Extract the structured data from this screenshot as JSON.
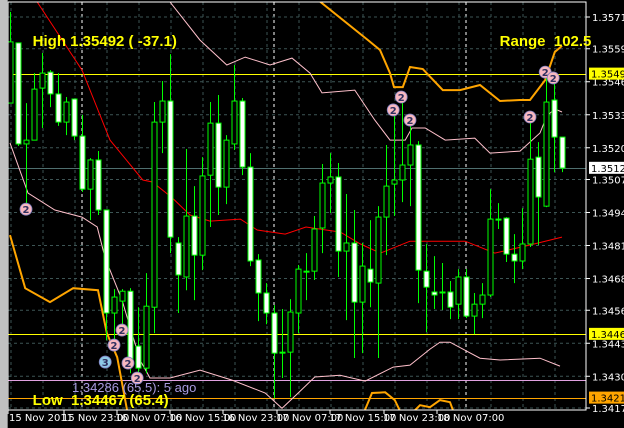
{
  "header": {
    "high_label": "High",
    "high_value": "1.35492 ( -37.1)",
    "range_label": "Range",
    "range_value": "102.5",
    "low_label": "Low",
    "low_value": "1.34467 (65.4)",
    "ago_text": "1.34286 (65.5): 5 ago"
  },
  "colors": {
    "background": "#000000",
    "bull_outline": "#00ff00",
    "bear_body": "#ffffff",
    "ma": "#ff0000",
    "envelope": "#ffc0cb",
    "band": "#ffa500",
    "high_low_line": "#ffff00",
    "ago_line": "#e0a0e0",
    "bid_line": "#4f6f6f",
    "marker_2": "#f8b8c0",
    "marker_3": "#8ecae6"
  },
  "chart_data": {
    "type": "candlestick",
    "title": "",
    "price_axis": {
      "range": [
        1.34145,
        1.35782
      ],
      "tick_labels": [
        "1.35715",
        "1.35590",
        "1.35460",
        "1.35330",
        "1.35200",
        "1.35075",
        "1.34945",
        "1.34815",
        "1.34685",
        "1.34560",
        "1.34430",
        "1.34300",
        "1.34175"
      ],
      "highlighted": [
        {
          "value": "1.35492",
          "price": 1.35492,
          "bg": "#ffff00",
          "fg": "#000000"
        },
        {
          "value": "1.35121",
          "price": 1.35121,
          "bg": "#ffffff",
          "fg": "#000000"
        },
        {
          "value": "1.34467",
          "price": 1.34467,
          "bg": "#ffff00",
          "fg": "#000000"
        },
        {
          "value": "1.34216",
          "price": 1.34216,
          "bg": "#ffa500",
          "fg": "#000000"
        }
      ]
    },
    "time_axis": {
      "tick_labels": [
        "15 Nov 2011",
        "15 Nov 23:00",
        "16 Nov 07:00",
        "16 Nov 15:00",
        "16 Nov 23:00",
        "17 Nov 07:00",
        "17 Nov 15:00",
        "17 Nov 23:00",
        "18 Nov 07:00"
      ]
    },
    "grid": true,
    "candles_ohlc": [
      [
        1.35376,
        1.35735,
        1.35376,
        1.35617
      ],
      [
        1.35613,
        1.35613,
        1.35207,
        1.35215
      ],
      [
        1.35215,
        1.35376,
        1.34955,
        1.3523
      ],
      [
        1.3523,
        1.35494,
        1.3523,
        1.35431
      ],
      [
        1.35435,
        1.35573,
        1.35278,
        1.35494
      ],
      [
        1.35498,
        1.35506,
        1.3536,
        1.35412
      ],
      [
        1.35412,
        1.35494,
        1.35286,
        1.35301
      ],
      [
        1.35301,
        1.354,
        1.3525,
        1.3538
      ],
      [
        1.35392,
        1.35392,
        1.3523,
        1.35246
      ],
      [
        1.35246,
        1.35329,
        1.35026,
        1.35037
      ],
      [
        1.35037,
        1.35159,
        1.34915,
        1.35152
      ],
      [
        1.35152,
        1.35187,
        1.34935,
        1.34955
      ],
      [
        1.34955,
        1.34955,
        1.34442,
        1.34549
      ],
      [
        1.34549,
        1.34643,
        1.34431,
        1.34612
      ],
      [
        1.34596,
        1.34643,
        1.34482,
        1.34635
      ],
      [
        1.34635,
        1.34647,
        1.34312,
        1.34364
      ],
      [
        1.34419,
        1.34572,
        1.34312,
        1.34332
      ],
      [
        1.34332,
        1.34706,
        1.34312,
        1.34576
      ],
      [
        1.34572,
        1.3538,
        1.3447,
        1.35301
      ],
      [
        1.35301,
        1.35463,
        1.35179,
        1.35384
      ],
      [
        1.35384,
        1.35569,
        1.34785,
        1.34848
      ],
      [
        1.34825,
        1.34848,
        1.34549,
        1.34699
      ],
      [
        1.34691,
        1.35195,
        1.34639,
        1.34931
      ],
      [
        1.34931,
        1.35049,
        1.346,
        1.34777
      ],
      [
        1.34777,
        1.35163,
        1.34718,
        1.35089
      ],
      [
        1.35092,
        1.3538,
        1.34888,
        1.35297
      ],
      [
        1.35297,
        1.35408,
        1.34935,
        1.35045
      ],
      [
        1.35045,
        1.3525,
        1.34978,
        1.3523
      ],
      [
        1.35215,
        1.35526,
        1.35191,
        1.35384
      ],
      [
        1.35384,
        1.35396,
        1.35092,
        1.35124
      ],
      [
        1.35124,
        1.35179,
        1.34734,
        1.34754
      ],
      [
        1.34758,
        1.34781,
        1.34517,
        1.34628
      ],
      [
        1.34628,
        1.34667,
        1.34505,
        1.34549
      ],
      [
        1.34549,
        1.3458,
        1.34214,
        1.34391
      ],
      [
        1.34395,
        1.34565,
        1.34293,
        1.34395
      ],
      [
        1.34395,
        1.34604,
        1.34218,
        1.34553
      ],
      [
        1.34549,
        1.34738,
        1.3447,
        1.34722
      ],
      [
        1.34714,
        1.34785,
        1.346,
        1.34714
      ],
      [
        1.34714,
        1.34931,
        1.34679,
        1.3488
      ],
      [
        1.34884,
        1.35136,
        1.34785,
        1.35061
      ],
      [
        1.35061,
        1.35179,
        1.34943,
        1.35085
      ],
      [
        1.35085,
        1.3514,
        1.34691,
        1.34793
      ],
      [
        1.34793,
        1.35018,
        1.34521,
        1.34825
      ],
      [
        1.34825,
        1.34955,
        1.34372,
        1.34592
      ],
      [
        1.34592,
        1.34825,
        1.34391,
        1.34734
      ],
      [
        1.34722,
        1.34915,
        1.34572,
        1.34671
      ],
      [
        1.34667,
        1.3497,
        1.34372,
        1.34927
      ],
      [
        1.34927,
        1.35211,
        1.34777,
        1.35049
      ],
      [
        1.35057,
        1.35364,
        1.34931,
        1.35073
      ],
      [
        1.35073,
        1.354,
        1.34986,
        1.35132
      ],
      [
        1.35132,
        1.35309,
        1.3497,
        1.35211
      ],
      [
        1.35211,
        1.35226,
        1.34588,
        1.34718
      ],
      [
        1.34714,
        1.34821,
        1.34474,
        1.34651
      ],
      [
        1.34632,
        1.34773,
        1.34565,
        1.3462
      ],
      [
        1.34632,
        1.34746,
        1.34561,
        1.34632
      ],
      [
        1.34632,
        1.34675,
        1.34525,
        1.34572
      ],
      [
        1.34584,
        1.34722,
        1.34525,
        1.34691
      ],
      [
        1.34691,
        1.34722,
        1.34529,
        1.34537
      ],
      [
        1.34537,
        1.34628,
        1.34466,
        1.34584
      ],
      [
        1.34584,
        1.34667,
        1.34529,
        1.3462
      ],
      [
        1.3462,
        1.35037,
        1.34612,
        1.34919
      ],
      [
        1.34919,
        1.34982,
        1.3488,
        1.34919
      ],
      [
        1.34923,
        1.34927,
        1.3475,
        1.34781
      ],
      [
        1.34781,
        1.3486,
        1.34667,
        1.34754
      ],
      [
        1.34754,
        1.34962,
        1.34722,
        1.34821
      ],
      [
        1.34821,
        1.35309,
        1.34809,
        1.35155
      ],
      [
        1.35163,
        1.35222,
        1.34817,
        1.35006
      ],
      [
        1.3497,
        1.35502,
        1.34966,
        1.3538
      ],
      [
        1.35388,
        1.35475,
        1.35104,
        1.35242
      ],
      [
        1.35242,
        1.35242,
        1.35104,
        1.3512
      ]
    ],
    "horizontal_lines": [
      {
        "price": 1.35492,
        "color": "#ffff00"
      },
      {
        "price": 1.35121,
        "color": "#4f6f6f"
      },
      {
        "price": 1.34467,
        "color": "#ffff00"
      },
      {
        "price": 1.34286,
        "color": "#e0a0e0"
      },
      {
        "price": 1.34216,
        "color": "#ffa500"
      }
    ],
    "day_separators_bar": [
      9,
      33,
      57
    ],
    "indicators": [
      {
        "id": "ma",
        "color": "#ff0000",
        "width": 1,
        "points": [
          [
            3.4,
            1.35774
          ],
          [
            9,
            1.35506
          ],
          [
            12.5,
            1.3523
          ],
          [
            16.6,
            1.35073
          ],
          [
            17.8,
            1.35065
          ],
          [
            20.3,
            1.35002
          ],
          [
            22.5,
            1.34935
          ],
          [
            25,
            1.34911
          ],
          [
            28.8,
            1.34919
          ],
          [
            30.9,
            1.34876
          ],
          [
            34.4,
            1.3486
          ],
          [
            37,
            1.34888
          ],
          [
            41.3,
            1.34868
          ],
          [
            43.8,
            1.34821
          ],
          [
            46.3,
            1.34785
          ],
          [
            50,
            1.34832
          ],
          [
            56.9,
            1.34832
          ],
          [
            60.6,
            1.34785
          ],
          [
            65,
            1.34817
          ],
          [
            69,
            1.34848
          ]
        ]
      },
      {
        "id": "envelope-upper",
        "color": "#ffc0cb",
        "width": 1,
        "points": [
          [
            20,
            1.35774
          ],
          [
            23.75,
            1.35624
          ],
          [
            27.1,
            1.35526
          ],
          [
            29.4,
            1.35557
          ],
          [
            32.5,
            1.35526
          ],
          [
            35.25,
            1.35553
          ],
          [
            37.5,
            1.35494
          ],
          [
            39,
            1.35416
          ],
          [
            43.1,
            1.35427
          ],
          [
            45.6,
            1.35309
          ],
          [
            47.5,
            1.3523
          ],
          [
            49.4,
            1.3523
          ],
          [
            50.25,
            1.35278
          ],
          [
            51.9,
            1.35278
          ],
          [
            54.4,
            1.3523
          ],
          [
            58.1,
            1.35238
          ],
          [
            60,
            1.35179
          ],
          [
            63.75,
            1.35187
          ],
          [
            66.25,
            1.35258
          ],
          [
            67.1,
            1.35325
          ],
          [
            68.1,
            1.35353
          ],
          [
            69,
            1.35341
          ]
        ]
      },
      {
        "id": "envelope-lower",
        "color": "#ffc0cb",
        "width": 1,
        "points": [
          [
            0,
            1.35219
          ],
          [
            2.25,
            1.35022
          ],
          [
            5.6,
            1.34955
          ],
          [
            9,
            1.34927
          ],
          [
            10.9,
            1.34888
          ],
          [
            11.9,
            1.34765
          ],
          [
            14,
            1.346
          ],
          [
            16.25,
            1.34364
          ],
          [
            17.5,
            1.34293
          ],
          [
            20,
            1.34293
          ],
          [
            23.75,
            1.34324
          ],
          [
            27.75,
            1.34285
          ],
          [
            31.9,
            1.34234
          ],
          [
            34,
            1.34174
          ],
          [
            35.75,
            1.34226
          ],
          [
            38.1,
            1.34297
          ],
          [
            41.25,
            1.34304
          ],
          [
            44.4,
            1.34281
          ],
          [
            47.9,
            1.34336
          ],
          [
            50,
            1.34344
          ],
          [
            52.5,
            1.34407
          ],
          [
            53.75,
            1.34434
          ],
          [
            55,
            1.34434
          ],
          [
            58.75,
            1.34371
          ],
          [
            61.25,
            1.34364
          ],
          [
            66.25,
            1.34371
          ],
          [
            68.75,
            1.3434
          ]
        ]
      },
      {
        "id": "band-upper",
        "color": "#ffa500",
        "width": 2,
        "points": [
          [
            38.5,
            1.35782
          ],
          [
            44.75,
            1.35624
          ],
          [
            46.25,
            1.35585
          ],
          [
            47.5,
            1.35494
          ],
          [
            48,
            1.35439
          ],
          [
            49.1,
            1.35439
          ],
          [
            50,
            1.35518
          ],
          [
            51.6,
            1.3551
          ],
          [
            54.1,
            1.35427
          ],
          [
            56.25,
            1.35427
          ],
          [
            58.75,
            1.35447
          ],
          [
            61.25,
            1.35384
          ],
          [
            63.75,
            1.35388
          ],
          [
            65,
            1.35388
          ],
          [
            66.9,
            1.35467
          ],
          [
            68.1,
            1.35577
          ],
          [
            69,
            1.35601
          ]
        ]
      },
      {
        "id": "band-lower-left",
        "color": "#ffa500",
        "width": 2,
        "points": [
          [
            0,
            1.34856
          ],
          [
            1.9,
            1.34647
          ],
          [
            5,
            1.34592
          ],
          [
            7.9,
            1.34647
          ],
          [
            11,
            1.34639
          ],
          [
            12.1,
            1.3447
          ],
          [
            13.4,
            1.34375
          ],
          [
            14.4,
            1.34206
          ],
          [
            14.75,
            1.34147
          ]
        ]
      },
      {
        "id": "band-lower-right",
        "color": "#ffa500",
        "width": 2,
        "points": [
          [
            44.1,
            1.34147
          ],
          [
            45.25,
            1.34234
          ],
          [
            46.9,
            1.34237
          ],
          [
            48.1,
            1.34206
          ],
          [
            49,
            1.34147
          ],
          [
            50,
            1.34147
          ],
          [
            51.25,
            1.34186
          ],
          [
            52.5,
            1.34178
          ],
          [
            53.75,
            1.34206
          ],
          [
            55,
            1.34198
          ],
          [
            55.6,
            1.34147
          ]
        ]
      }
    ],
    "markers": [
      {
        "bar": 2,
        "price": 1.34958,
        "label": "2"
      },
      {
        "bar": 14,
        "price": 1.34482,
        "label": "2"
      },
      {
        "bar": 13,
        "price": 1.34423,
        "label": "2"
      },
      {
        "bar": 11.9,
        "price": 1.34356,
        "label": "3"
      },
      {
        "bar": 14.75,
        "price": 1.34352,
        "label": "2"
      },
      {
        "bar": 15.9,
        "price": 1.34293,
        "label": "2"
      },
      {
        "bar": 47.9,
        "price": 1.35349,
        "label": "2"
      },
      {
        "bar": 48.9,
        "price": 1.354,
        "label": "2"
      },
      {
        "bar": 50,
        "price": 1.35309,
        "label": "2"
      },
      {
        "bar": 65,
        "price": 1.35321,
        "label": "2"
      },
      {
        "bar": 66.9,
        "price": 1.35498,
        "label": "2"
      },
      {
        "bar": 67.9,
        "price": 1.35475,
        "label": "2"
      }
    ]
  }
}
